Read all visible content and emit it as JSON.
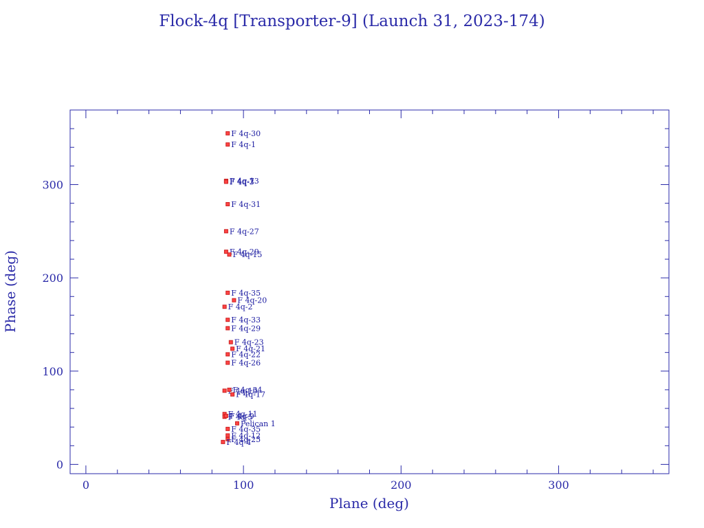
{
  "chart_data": {
    "type": "scatter",
    "title": "Flock-4q [Transporter-9] (Launch 31, 2023-174)",
    "xlabel": "Plane (deg)",
    "ylabel": "Phase (deg)",
    "xlim": [
      -10,
      370
    ],
    "ylim": [
      -10,
      380
    ],
    "xticks": [
      0,
      100,
      200,
      300
    ],
    "yticks": [
      0,
      100,
      200,
      300
    ],
    "grid": false,
    "colors": {
      "frame": "#2a2aa8",
      "marker": "#cc2222",
      "marker_fill": "#ff4444",
      "label": "#1a1aa0"
    },
    "points": [
      {
        "x": 90,
        "y": 355,
        "label": "F 4q-30"
      },
      {
        "x": 90,
        "y": 343,
        "label": "F 4q-1"
      },
      {
        "x": 89,
        "y": 304,
        "label": "F 4q-13"
      },
      {
        "x": 89,
        "y": 304,
        "label": "F 4q-7"
      },
      {
        "x": 89,
        "y": 303,
        "label": "F 4q-3"
      },
      {
        "x": 90,
        "y": 279,
        "label": "F 4q-31"
      },
      {
        "x": 89,
        "y": 250,
        "label": "F 4q-27"
      },
      {
        "x": 89,
        "y": 228,
        "label": "F 4q-29"
      },
      {
        "x": 91,
        "y": 225,
        "label": "F 4q-15"
      },
      {
        "x": 90,
        "y": 184,
        "label": "F 4q-35"
      },
      {
        "x": 94,
        "y": 176,
        "label": "F 4q-20"
      },
      {
        "x": 88,
        "y": 169,
        "label": "F 4q-2"
      },
      {
        "x": 90,
        "y": 155,
        "label": "F 4q-33"
      },
      {
        "x": 90,
        "y": 146,
        "label": "F 4q-29"
      },
      {
        "x": 92,
        "y": 131,
        "label": "F 4q-23"
      },
      {
        "x": 93,
        "y": 124,
        "label": "F 4q-21"
      },
      {
        "x": 90,
        "y": 118,
        "label": "F 4q-22"
      },
      {
        "x": 90,
        "y": 109,
        "label": "F 4q-26"
      },
      {
        "x": 88,
        "y": 79,
        "label": "F 4q-19"
      },
      {
        "x": 91,
        "y": 80,
        "label": "F 4q-34"
      },
      {
        "x": 93,
        "y": 75,
        "label": "F 4q-17"
      },
      {
        "x": 88,
        "y": 54,
        "label": "F 4q-11"
      },
      {
        "x": 88,
        "y": 51,
        "label": "F 4q-5"
      },
      {
        "x": 89,
        "y": 52,
        "label": "F 4q-9"
      },
      {
        "x": 96,
        "y": 44,
        "label": "Pelican 1"
      },
      {
        "x": 90,
        "y": 38,
        "label": "F 4q-35"
      },
      {
        "x": 90,
        "y": 31,
        "label": "F 4q-12"
      },
      {
        "x": 90,
        "y": 27,
        "label": "F 4q-25"
      },
      {
        "x": 87,
        "y": 24,
        "label": "F 4q-4"
      }
    ]
  }
}
